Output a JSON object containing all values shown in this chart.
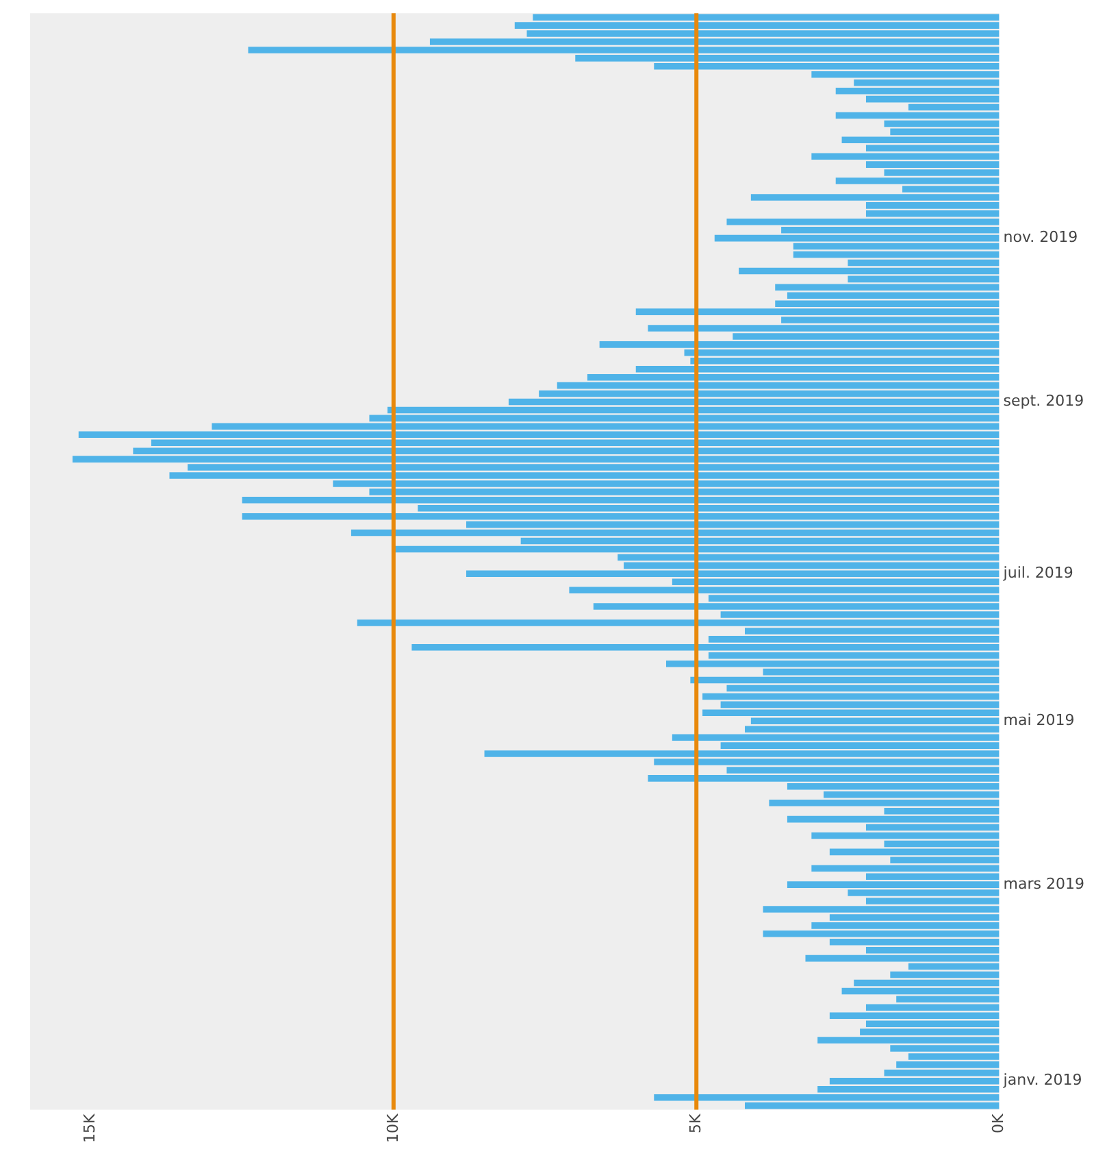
{
  "chart_data": {
    "type": "bar",
    "orientation": "horizontal",
    "color": "#4fb3e8",
    "categories": [
      null,
      null,
      null,
      null,
      null,
      null,
      null,
      null,
      null,
      null,
      null,
      null,
      null,
      null,
      null,
      null,
      null,
      null,
      null,
      null,
      null,
      null,
      null,
      null,
      null,
      null,
      null,
      "nov. 2019",
      null,
      null,
      null,
      null,
      null,
      null,
      null,
      null,
      null,
      null,
      null,
      null,
      null,
      null,
      null,
      null,
      null,
      null,
      null,
      "sept. 2019",
      null,
      null,
      null,
      null,
      null,
      null,
      null,
      null,
      null,
      null,
      null,
      null,
      null,
      null,
      null,
      null,
      null,
      null,
      null,
      null,
      "juil. 2019",
      null,
      null,
      null,
      null,
      null,
      null,
      null,
      null,
      null,
      null,
      null,
      null,
      null,
      null,
      null,
      null,
      null,
      "mai 2019",
      null,
      null,
      null,
      null,
      null,
      null,
      null,
      null,
      null,
      null,
      null,
      null,
      null,
      null,
      null,
      null,
      null,
      null,
      null,
      "mars 2019",
      null,
      null,
      null,
      null,
      null,
      null,
      null,
      null,
      null,
      null,
      null,
      null,
      null,
      null,
      null,
      null,
      null,
      null,
      null,
      null,
      null,
      null,
      null,
      "janv. 2019",
      null,
      null,
      null
    ],
    "values": [
      7700,
      8000,
      7800,
      9400,
      12400,
      7000,
      5700,
      3100,
      2400,
      2700,
      2200,
      1500,
      2700,
      1900,
      1800,
      2600,
      2200,
      3100,
      2200,
      1900,
      2700,
      1600,
      4100,
      2200,
      2200,
      4500,
      3600,
      4700,
      3400,
      3400,
      2500,
      4300,
      2500,
      3700,
      3500,
      3700,
      6000,
      3600,
      5800,
      4400,
      6600,
      5200,
      5100,
      6000,
      6800,
      7300,
      7600,
      8100,
      10100,
      10400,
      13000,
      15200,
      14000,
      14300,
      15300,
      13400,
      13700,
      11000,
      10400,
      12500,
      9600,
      12500,
      8800,
      10700,
      7900,
      10000,
      6300,
      6200,
      8800,
      5400,
      7100,
      4800,
      6700,
      4600,
      10600,
      4200,
      4800,
      9700,
      4800,
      5500,
      3900,
      5100,
      4500,
      4900,
      4600,
      4900,
      4100,
      4200,
      5400,
      4600,
      8500,
      5700,
      4500,
      5800,
      3500,
      2900,
      3800,
      1900,
      3500,
      2200,
      3100,
      1900,
      2800,
      1800,
      3100,
      2200,
      3500,
      2500,
      2200,
      3900,
      2800,
      3100,
      3900,
      2800,
      2200,
      3200,
      1500,
      1800,
      2400,
      2600,
      1700,
      2200,
      2800,
      2200,
      2300,
      3000,
      1800,
      1500,
      1700,
      1900,
      2800,
      3000,
      5700,
      4200
    ],
    "xlim": [
      16000,
      0
    ],
    "xticks": [
      {
        "value": 15000,
        "label": "15K"
      },
      {
        "value": 10000,
        "label": "10K"
      },
      {
        "value": 5000,
        "label": "5K"
      },
      {
        "value": 0,
        "label": "0K"
      }
    ],
    "ref_lines": [
      {
        "axis": "x",
        "value": 10000,
        "color": "#e8890c"
      },
      {
        "axis": "x",
        "value": 5000,
        "color": "#e8890c"
      }
    ]
  }
}
